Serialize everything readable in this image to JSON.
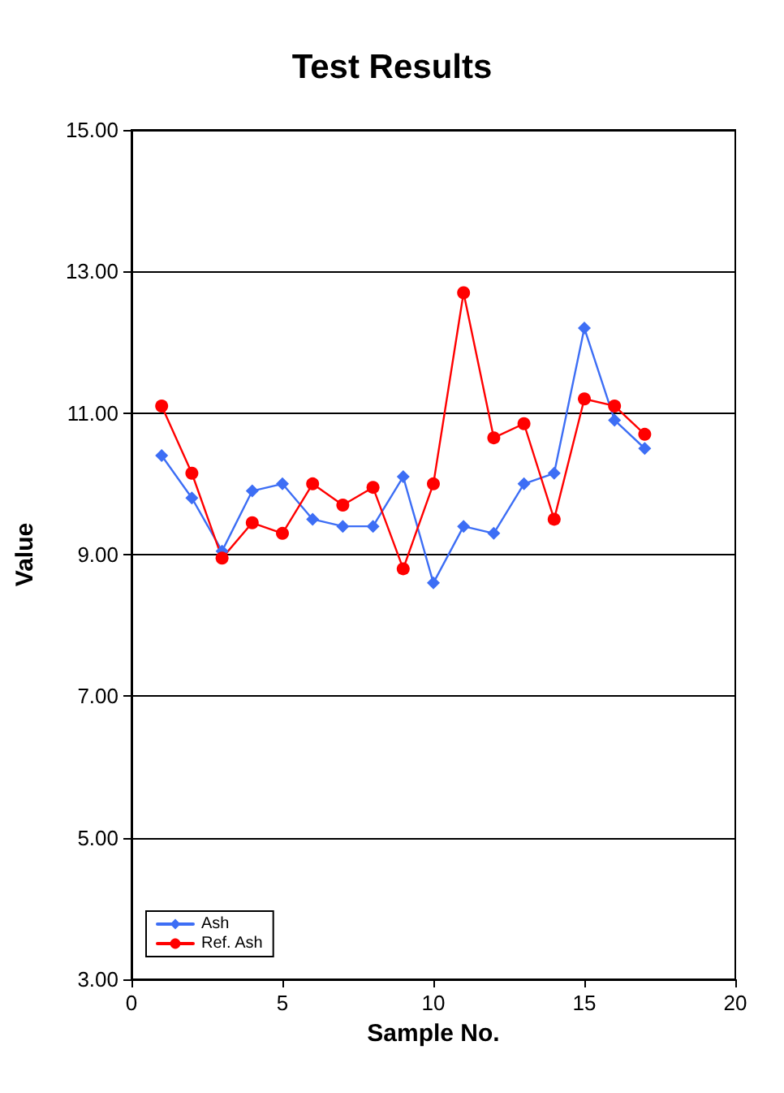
{
  "chart_data": {
    "type": "line",
    "title": "Test Results",
    "xlabel": "Sample No.",
    "ylabel": "Value",
    "x": [
      1,
      2,
      3,
      4,
      5,
      6,
      7,
      8,
      9,
      10,
      11,
      12,
      13,
      14,
      15,
      16,
      17
    ],
    "series": [
      {
        "name": "Ash",
        "color": "#3d6ef5",
        "marker": "diamond",
        "values": [
          10.4,
          9.8,
          9.05,
          9.9,
          10.0,
          9.5,
          9.4,
          9.4,
          10.1,
          8.6,
          9.4,
          9.3,
          10.0,
          10.15,
          12.2,
          10.9,
          10.5
        ]
      },
      {
        "name": "Ref. Ash",
        "color": "#ff0000",
        "marker": "circle",
        "values": [
          11.1,
          10.15,
          8.95,
          9.45,
          9.3,
          10.0,
          9.7,
          9.95,
          8.8,
          10.0,
          12.7,
          10.65,
          10.85,
          9.5,
          11.2,
          11.1,
          10.7
        ]
      }
    ],
    "xlim": [
      0,
      20
    ],
    "xticks": [
      0,
      5,
      10,
      15,
      20
    ],
    "ylim": [
      3,
      15
    ],
    "yticks": [
      {
        "value": 3,
        "label": "3.00"
      },
      {
        "value": 5,
        "label": "5.00"
      },
      {
        "value": 7,
        "label": "7.00"
      },
      {
        "value": 9,
        "label": "9.00"
      },
      {
        "value": 11,
        "label": "11.00"
      },
      {
        "value": 13,
        "label": "13.00"
      },
      {
        "value": 15,
        "label": "15.00"
      }
    ],
    "grid": "y",
    "legend": "bottom left",
    "line_style": "solid"
  }
}
